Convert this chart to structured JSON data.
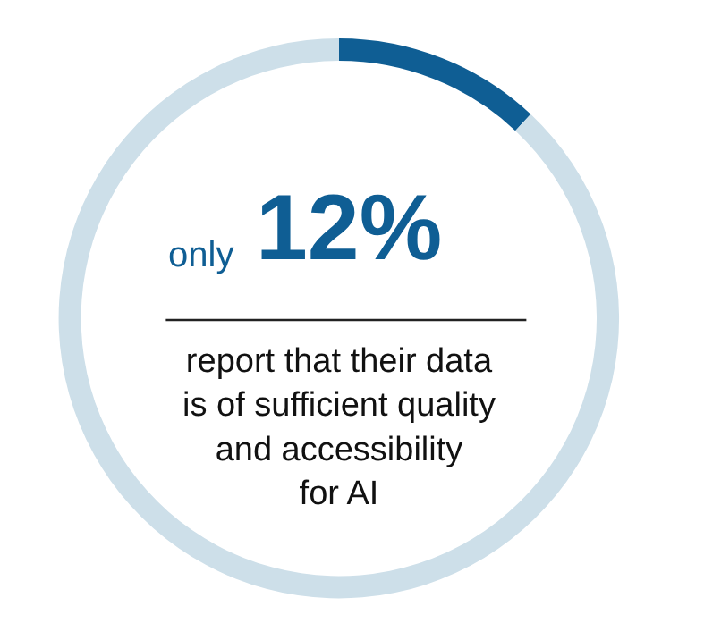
{
  "chart_data": {
    "type": "donut",
    "categories": [
      null,
      null
    ],
    "values": [
      12,
      88
    ],
    "colors": [
      "#0f5e94",
      "#cddfe9"
    ],
    "annotations": [
      "only",
      "12%",
      "report that their data\nis of sufficient quality\nand accessibility\nfor AI"
    ]
  }
}
